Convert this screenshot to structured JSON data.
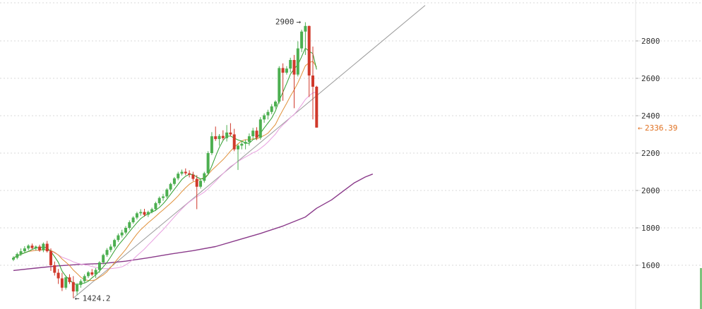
{
  "chart_data": {
    "type": "candlestick",
    "y_ticks": [
      1600,
      1800,
      2000,
      2200,
      2400,
      2600,
      2800
    ],
    "ylim": [
      1400,
      2950
    ],
    "grid": true,
    "colors": {
      "up": "#4caf50",
      "down": "#d0392b",
      "ma_fast": "#2e9e2e",
      "ma_mid": "#e0903a",
      "ma_slow": "#e8a0e0",
      "ma_long": "#8a3a8a",
      "trendline": "#999999",
      "price_tag": "#e07020",
      "grid": "#d8d8d8"
    },
    "candles": [
      [
        1630,
        1648,
        1622,
        1640
      ],
      [
        1640,
        1668,
        1632,
        1660
      ],
      [
        1660,
        1690,
        1650,
        1675
      ],
      [
        1675,
        1702,
        1665,
        1690
      ],
      [
        1690,
        1712,
        1680,
        1705
      ],
      [
        1705,
        1716,
        1685,
        1692
      ],
      [
        1692,
        1706,
        1678,
        1700
      ],
      [
        1700,
        1710,
        1672,
        1680
      ],
      [
        1680,
        1722,
        1670,
        1715
      ],
      [
        1715,
        1730,
        1668,
        1675
      ],
      [
        1675,
        1690,
        1570,
        1600
      ],
      [
        1600,
        1620,
        1545,
        1560
      ],
      [
        1560,
        1580,
        1500,
        1530
      ],
      [
        1530,
        1560,
        1462,
        1480
      ],
      [
        1480,
        1545,
        1470,
        1535
      ],
      [
        1535,
        1552,
        1500,
        1510
      ],
      [
        1510,
        1542,
        1424.2,
        1460
      ],
      [
        1460,
        1505,
        1440,
        1495
      ],
      [
        1495,
        1525,
        1480,
        1515
      ],
      [
        1515,
        1552,
        1505,
        1542
      ],
      [
        1542,
        1570,
        1532,
        1562
      ],
      [
        1562,
        1580,
        1542,
        1550
      ],
      [
        1550,
        1585,
        1532,
        1575
      ],
      [
        1575,
        1622,
        1560,
        1615
      ],
      [
        1615,
        1662,
        1605,
        1655
      ],
      [
        1655,
        1692,
        1645,
        1682
      ],
      [
        1682,
        1712,
        1670,
        1700
      ],
      [
        1700,
        1742,
        1690,
        1735
      ],
      [
        1735,
        1770,
        1725,
        1760
      ],
      [
        1760,
        1790,
        1748,
        1775
      ],
      [
        1775,
        1810,
        1765,
        1800
      ],
      [
        1800,
        1840,
        1790,
        1830
      ],
      [
        1830,
        1862,
        1822,
        1855
      ],
      [
        1855,
        1886,
        1845,
        1878
      ],
      [
        1878,
        1900,
        1865,
        1885
      ],
      [
        1885,
        1902,
        1860,
        1870
      ],
      [
        1870,
        1892,
        1858,
        1885
      ],
      [
        1885,
        1908,
        1878,
        1900
      ],
      [
        1900,
        1940,
        1890,
        1932
      ],
      [
        1932,
        1968,
        1922,
        1960
      ],
      [
        1960,
        1982,
        1945,
        1968
      ],
      [
        1968,
        2012,
        1958,
        2005
      ],
      [
        2005,
        2042,
        1995,
        2035
      ],
      [
        2035,
        2072,
        2025,
        2065
      ],
      [
        2065,
        2100,
        2055,
        2090
      ],
      [
        2090,
        2112,
        2080,
        2100
      ],
      [
        2100,
        2118,
        2082,
        2092
      ],
      [
        2092,
        2108,
        2070,
        2085
      ],
      [
        2085,
        2100,
        2050,
        2062
      ],
      [
        2062,
        2082,
        1900,
        2020
      ],
      [
        2020,
        2062,
        2010,
        2052
      ],
      [
        2052,
        2100,
        2042,
        2092
      ],
      [
        2092,
        2210,
        2082,
        2200
      ],
      [
        2200,
        2312,
        2190,
        2290
      ],
      [
        2290,
        2342,
        2265,
        2275
      ],
      [
        2275,
        2302,
        2240,
        2292
      ],
      [
        2292,
        2322,
        2270,
        2280
      ],
      [
        2280,
        2350,
        2262,
        2310
      ],
      [
        2310,
        2360,
        2290,
        2300
      ],
      [
        2300,
        2330,
        2210,
        2220
      ],
      [
        2220,
        2248,
        2110,
        2240
      ],
      [
        2240,
        2262,
        2220,
        2250
      ],
      [
        2250,
        2272,
        2220,
        2260
      ],
      [
        2260,
        2305,
        2240,
        2290
      ],
      [
        2290,
        2335,
        2278,
        2320
      ],
      [
        2320,
        2338,
        2270,
        2282
      ],
      [
        2282,
        2392,
        2272,
        2380
      ],
      [
        2380,
        2412,
        2362,
        2402
      ],
      [
        2402,
        2432,
        2380,
        2420
      ],
      [
        2420,
        2462,
        2408,
        2450
      ],
      [
        2450,
        2482,
        2438,
        2475
      ],
      [
        2475,
        2665,
        2465,
        2655
      ],
      [
        2655,
        2680,
        2480,
        2630
      ],
      [
        2630,
        2665,
        2620,
        2652
      ],
      [
        2652,
        2710,
        2632,
        2698
      ],
      [
        2698,
        2725,
        2440,
        2620
      ],
      [
        2620,
        2798,
        2610,
        2760
      ],
      [
        2760,
        2860,
        2740,
        2850
      ],
      [
        2850,
        2900,
        2725,
        2880
      ],
      [
        2880,
        2882,
        2500,
        2615
      ],
      [
        2615,
        2770,
        2380,
        2555
      ],
      [
        2555,
        2560,
        2336.39,
        2336.39
      ]
    ],
    "ma_long": [
      [
        0,
        1572
      ],
      [
        6,
        1585
      ],
      [
        12,
        1597
      ],
      [
        18,
        1605
      ],
      [
        24,
        1610
      ],
      [
        30,
        1622
      ],
      [
        36,
        1640
      ],
      [
        42,
        1660
      ],
      [
        48,
        1678
      ],
      [
        54,
        1700
      ],
      [
        60,
        1735
      ],
      [
        66,
        1770
      ],
      [
        72,
        1810
      ],
      [
        78,
        1858
      ],
      [
        81,
        1905
      ],
      [
        85,
        1950
      ],
      [
        88,
        1995
      ],
      [
        91,
        2040
      ],
      [
        94,
        2072
      ],
      [
        96,
        2088
      ]
    ],
    "trendline": {
      "from": [
        16,
        1424.2
      ],
      "to": [
        110,
        2990
      ]
    },
    "annotations": {
      "high_label": "2900",
      "low_label": "1424.2",
      "last_price_label": "2336.39"
    }
  }
}
